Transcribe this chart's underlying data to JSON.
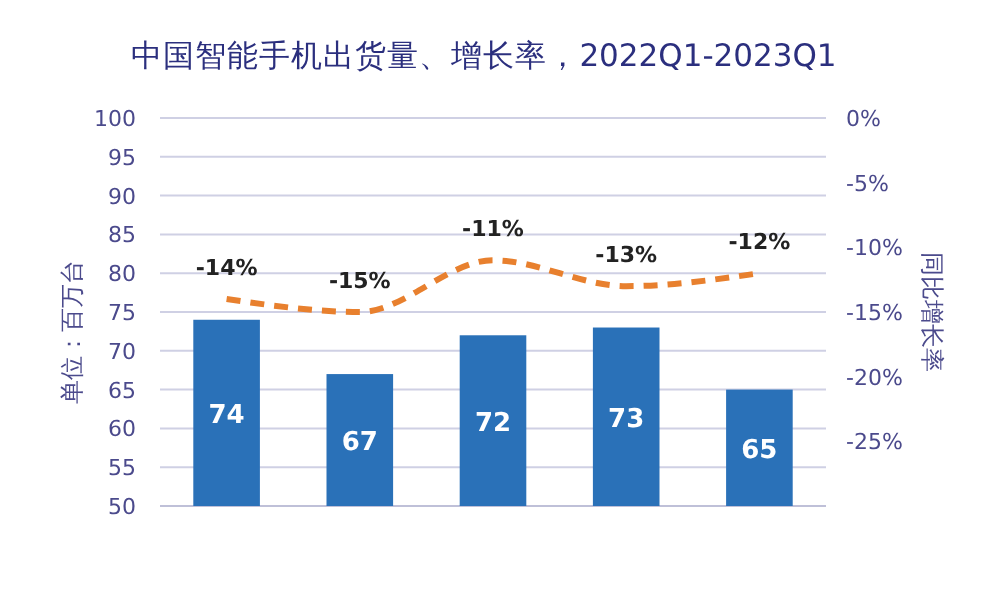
{
  "chart_data": {
    "type": "bar",
    "title": "中国智能手机出货量、增长率，2022Q1-2023Q1",
    "ylabel": "单位：百万台",
    "y2label": "同比增长率",
    "categories": [
      null,
      null,
      null,
      null,
      null
    ],
    "series": [
      {
        "color": "#2a71b8",
        "values": [
          74,
          67,
          72,
          73,
          65
        ],
        "value_labels": [
          "74",
          "67",
          "72",
          "73",
          "65"
        ]
      },
      {
        "type": "line",
        "axis": "y2",
        "color": "#e8802e",
        "line_style": "dashed",
        "marker": "none",
        "values": [
          -14,
          -15,
          -11,
          -13,
          -12
        ],
        "value_labels": [
          "-14%",
          "-15%",
          "-11%",
          "-13%",
          "-12%"
        ]
      }
    ],
    "ylim": [
      50,
      100
    ],
    "yticks": [
      50,
      55,
      60,
      65,
      70,
      75,
      80,
      85,
      90,
      95,
      100
    ],
    "y2lim": [
      -30,
      0
    ],
    "y2ticks": [
      {
        "value": 0,
        "label": "0%"
      },
      {
        "value": -5,
        "label": "-5%"
      },
      {
        "value": -10,
        "label": "-10%"
      },
      {
        "value": -15,
        "label": "-15%"
      },
      {
        "value": -20,
        "label": "-20%"
      },
      {
        "value": -25,
        "label": "-25%"
      }
    ],
    "grid": "y"
  }
}
